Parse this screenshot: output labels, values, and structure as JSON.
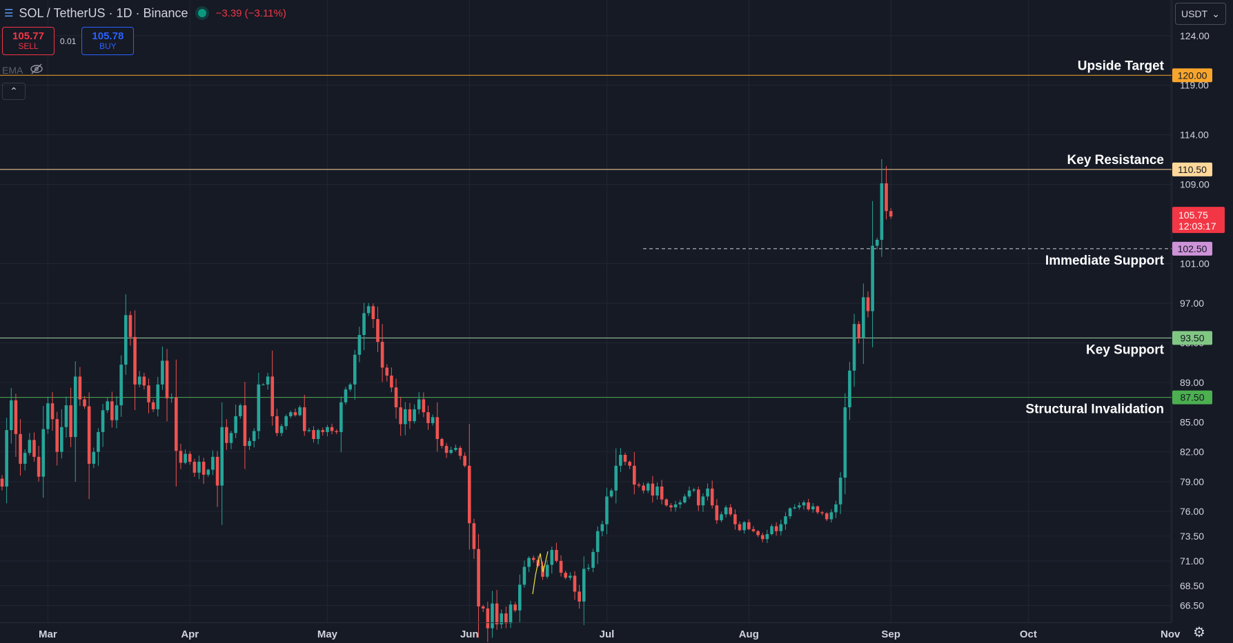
{
  "header": {
    "menu_icon": "hamburger-icon",
    "title": "SOL / TetherUS · 1D · Binance",
    "change": "−3.39 (−3.11%)",
    "status_color": "#089981"
  },
  "trade": {
    "sell_price": "105.77",
    "sell_label": "SELL",
    "spread": "0.01",
    "buy_price": "105.78",
    "buy_label": "BUY"
  },
  "indicator": {
    "label": "EMA",
    "icon": "eye-off-icon"
  },
  "collapse": {
    "icon": "chevron-up-icon"
  },
  "currency": {
    "value": "USDT"
  },
  "settings": {
    "icon": "gear-icon"
  },
  "colors": {
    "background": "#161a25",
    "grid": "#222633",
    "up": "#26a69a",
    "down": "#ef5350",
    "text": "#d1d4dc",
    "resistance": "#ffd89a",
    "target": "#f7a52c",
    "support": "#a5d6a7",
    "invalidation": "#4caf50"
  },
  "chart_data": {
    "type": "candlestick",
    "title": "",
    "xlabel": "",
    "ylabel": "",
    "ylim": [
      64.8,
      127.6
    ],
    "x_ticks": [
      "Mar",
      "Apr",
      "May",
      "Jun",
      "Jul",
      "Aug",
      "Sep",
      "Oct",
      "Nov"
    ],
    "y_ticks": [
      "124.00",
      "119.00",
      "114.00",
      "109.00",
      "101.00",
      "97.00",
      "93.00",
      "89.00",
      "85.00",
      "82.00",
      "79.00",
      "76.00",
      "73.50",
      "71.00",
      "68.50",
      "66.50"
    ],
    "y_tick_values": [
      124,
      119,
      114,
      109,
      101,
      97,
      93,
      89,
      85,
      82,
      79,
      76,
      73.5,
      71,
      68.5,
      66.5
    ],
    "last_price": {
      "value": 105.75,
      "label": "105.75",
      "countdown": "12:03:17",
      "color": "#f23645"
    },
    "levels": [
      {
        "name": "Upside Target",
        "value": 120.0,
        "label": "120.00",
        "line_color": "#f7a52c",
        "tag_color": "#f7a52c",
        "tag_text_color": "#131722",
        "style": "solid"
      },
      {
        "name": "Key Resistance",
        "value": 110.5,
        "label": "110.50",
        "line_color": "#ffd89a",
        "tag_color": "#ffd89a",
        "tag_text_color": "#131722",
        "style": "solid"
      },
      {
        "name": "Immediate Support",
        "value": 102.5,
        "label": "102.50",
        "line_color": "#d1d4dc",
        "tag_color": "#ce93d8",
        "tag_text_color": "#131722",
        "style": "dashed"
      },
      {
        "name": "Key Support",
        "value": 93.5,
        "label": "93.50",
        "line_color": "#a5d6a7",
        "tag_color": "#81c784",
        "tag_text_color": "#131722",
        "style": "solid"
      },
      {
        "name": "Structural Invalidation",
        "value": 87.5,
        "label": "87.50",
        "line_color": "#4caf50",
        "tag_color": "#4caf50",
        "tag_text_color": "#131722",
        "style": "solid"
      }
    ],
    "candles_close": [
      78.5,
      84.2,
      87.2,
      83.8,
      80.8,
      81.9,
      83.2,
      81.5,
      79.5,
      84.3,
      86.9,
      85.3,
      82.0,
      84.5,
      86.7,
      83.5,
      89.6,
      87.3,
      86.6,
      80.8,
      82.0,
      84.0,
      86.2,
      87.1,
      85.2,
      86.7,
      90.8,
      95.8,
      93.6,
      88.8,
      89.6,
      88.7,
      87.0,
      86.3,
      88.8,
      91.2,
      87.4,
      87.5,
      82.1,
      80.9,
      81.8,
      81.0,
      79.9,
      81.0,
      79.7,
      80.2,
      81.5,
      78.6,
      84.5,
      82.9,
      83.9,
      85.6,
      86.7,
      82.6,
      83.1,
      84.1,
      88.8,
      88.8,
      89.6,
      85.6,
      83.9,
      84.6,
      85.6,
      86.0,
      85.7,
      86.5,
      84.1,
      84.2,
      83.3,
      84.2,
      84.0,
      84.5,
      84.1,
      84.0,
      87.0,
      88.3,
      88.8,
      91.8,
      93.8,
      96.0,
      96.7,
      95.4,
      93.1,
      90.5,
      89.7,
      88.5,
      86.5,
      84.8,
      86.3,
      85.1,
      86.3,
      87.3,
      86.0,
      84.9,
      85.5,
      83.3,
      82.6,
      81.9,
      82.2,
      82.4,
      81.6,
      80.6,
      74.8,
      72.2,
      66.4,
      66.2,
      64.2,
      66.7,
      64.6,
      65.7,
      64.7,
      66.6,
      66.0,
      68.6,
      70.4,
      71.3,
      71.1,
      70.5,
      69.4,
      70.6,
      72.1,
      71.0,
      69.8,
      69.3,
      69.5,
      67.9,
      66.9,
      70.2,
      70.3,
      71.9,
      74.0,
      74.7,
      77.5,
      78.1,
      80.6,
      81.7,
      81.0,
      80.6,
      78.7,
      78.6,
      78.1,
      78.8,
      77.6,
      78.5,
      77.2,
      76.6,
      76.4,
      76.7,
      76.9,
      77.5,
      78.1,
      78.2,
      76.6,
      77.5,
      78.3,
      76.6,
      75.1,
      75.7,
      76.4,
      75.7,
      74.7,
      74.1,
      74.9,
      74.2,
      74.0,
      73.6,
      73.2,
      73.7,
      74.5,
      74.0,
      74.7,
      75.5,
      76.3,
      76.4,
      76.6,
      76.9,
      76.2,
      76.5,
      75.9,
      75.8,
      75.2,
      75.9,
      76.7,
      79.4,
      86.5,
      90.2,
      94.9,
      93.5,
      97.6,
      96.2,
      102.8,
      103.4,
      109.1,
      106.3,
      105.75
    ]
  }
}
